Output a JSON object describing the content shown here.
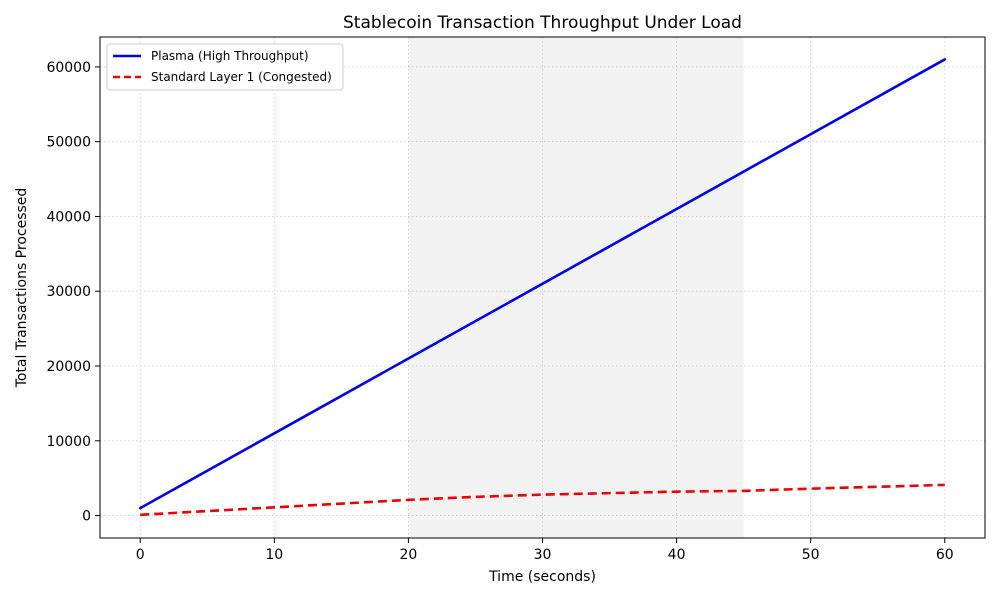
{
  "chart_data": {
    "type": "line",
    "title": "Stablecoin Transaction Throughput Under Load",
    "xlabel": "Time (seconds)",
    "ylabel": "Total Transactions Processed",
    "xlim": [
      -3,
      63
    ],
    "ylim": [
      -3000,
      64000
    ],
    "xticks": [
      0,
      10,
      20,
      30,
      40,
      50,
      60
    ],
    "yticks": [
      0,
      10000,
      20000,
      30000,
      40000,
      50000,
      60000
    ],
    "grid": true,
    "legend": "top-left",
    "shaded_region": {
      "x": [
        20,
        45
      ],
      "color": "#f2f2f2"
    },
    "series": [
      {
        "name": "Plasma (High Throughput)",
        "color": "#0000ee",
        "style": "solid",
        "x": [
          0,
          10,
          20,
          30,
          40,
          45,
          50,
          60
        ],
        "y": [
          1000,
          11000,
          21000,
          31000,
          41000,
          46000,
          51000,
          61000
        ]
      },
      {
        "name": "Standard Layer 1 (Congested)",
        "color": "#ee0000",
        "style": "dashed",
        "x": [
          0,
          10,
          20,
          25,
          30,
          35,
          40,
          45,
          50,
          60
        ],
        "y": [
          100,
          1100,
          2100,
          2500,
          2800,
          3000,
          3200,
          3300,
          3600,
          4100
        ]
      }
    ]
  }
}
